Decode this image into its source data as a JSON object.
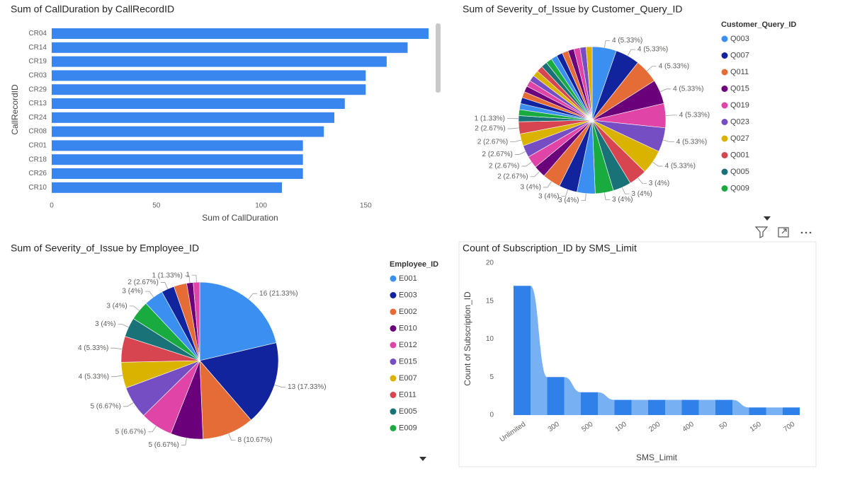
{
  "chart_data": [
    {
      "type": "bar",
      "title": "Sum of CallDuration by CallRecordID",
      "categories": [
        "CR04",
        "CR14",
        "CR19",
        "CR03",
        "CR29",
        "CR13",
        "CR24",
        "CR08",
        "CR01",
        "CR18",
        "CR26",
        "CR10"
      ],
      "values": [
        180,
        170,
        160,
        150,
        150,
        140,
        135,
        130,
        120,
        120,
        120,
        110
      ],
      "color": "#3a86ef",
      "xlim": [
        0,
        180
      ],
      "xticks": [
        0,
        50,
        100,
        150
      ],
      "x_label": "Sum of CallDuration",
      "y_label": "CallRecordID"
    },
    {
      "type": "pie",
      "title": "Sum of Severity_of_Issue by Customer_Query_ID",
      "legend_title": "Customer_Query_ID",
      "categories": [
        "Q003",
        "Q007",
        "Q011",
        "Q015",
        "Q019",
        "Q023",
        "Q027",
        "Q001",
        "Q005",
        "Q009",
        null,
        null,
        null,
        null,
        null,
        null,
        null,
        null,
        null,
        null,
        null,
        null,
        null,
        null,
        null,
        null,
        null,
        null,
        null,
        null,
        null,
        null,
        null,
        null,
        null,
        null,
        null
      ],
      "values": [
        4,
        4,
        4,
        4,
        4,
        4,
        4,
        3,
        3,
        3,
        3,
        3,
        3,
        2,
        2,
        2,
        2,
        2,
        1,
        1,
        1,
        1,
        1,
        1,
        1,
        1,
        1,
        1,
        1,
        1,
        1,
        1,
        1,
        1,
        1,
        1,
        1
      ],
      "value_labels": [
        "4 (5.33%)",
        "4 (5.33%)",
        "4 (5.33%)",
        "4 (5.33%)",
        "4 (5.33%)",
        "4 (5.33%)",
        "4 (5.33%)",
        "3 (4%)",
        "3 (4%)",
        "3 (4%)",
        "3 (4%)",
        "3 (4%)",
        "3 (4%)",
        "2 (2.67%)",
        "2 (2.67%)",
        "2 (2.67%)",
        "2 (2.67%)",
        "2 (2.67%)",
        "1 (1.33%)",
        null,
        null,
        null,
        null,
        null,
        null,
        null,
        null,
        null,
        null,
        null,
        null,
        null,
        null,
        null,
        null,
        null,
        null
      ],
      "colors": [
        "#3b8ff0",
        "#12239e",
        "#e66c37",
        "#6b007b",
        "#e044a7",
        "#744ec2",
        "#d9b300",
        "#d64550",
        "#197278",
        "#1aab40"
      ]
    },
    {
      "type": "pie",
      "title": "Sum of Severity_of_Issue by Employee_ID",
      "legend_title": "Employee_ID",
      "categories": [
        "E001",
        "E003",
        "E002",
        "E010",
        "E012",
        "E015",
        "E007",
        "E011",
        "E005",
        "E009",
        null,
        null,
        null,
        null,
        null
      ],
      "values": [
        16,
        13,
        8,
        5,
        5,
        5,
        4,
        4,
        3,
        3,
        3,
        2,
        2,
        1,
        1
      ],
      "value_labels": [
        "16 (21.33%)",
        "13 (17.33%)",
        "8 (10.67%)",
        "5 (6.67%)",
        "5 (6.67%)",
        "5 (6.67%)",
        "4 (5.33%)",
        "4 (5.33%)",
        "3 (4%)",
        "3 (4%)",
        "3 (4%)",
        "2 (2.67%)",
        null,
        "1 (1.33%)",
        "1"
      ],
      "colors": [
        "#3b8ff0",
        "#12239e",
        "#e66c37",
        "#6b007b",
        "#e044a7",
        "#744ec2",
        "#d9b300",
        "#d64550",
        "#197278",
        "#1aab40"
      ]
    },
    {
      "type": "ribbon",
      "title": "Count of Subscription_ID by SMS_Limit",
      "categories": [
        "Unlimited",
        "300",
        "500",
        "100",
        "200",
        "400",
        "50",
        "150",
        "700"
      ],
      "values": [
        17,
        5,
        3,
        2,
        2,
        2,
        2,
        1,
        1
      ],
      "color": "#2f80e8",
      "ribbon_color": "#78b0f4",
      "ylim": [
        0,
        20
      ],
      "yticks": [
        0,
        5,
        10,
        15,
        20
      ],
      "x_label": "SMS_Limit",
      "y_label": "Count of Subscription_ID"
    }
  ]
}
